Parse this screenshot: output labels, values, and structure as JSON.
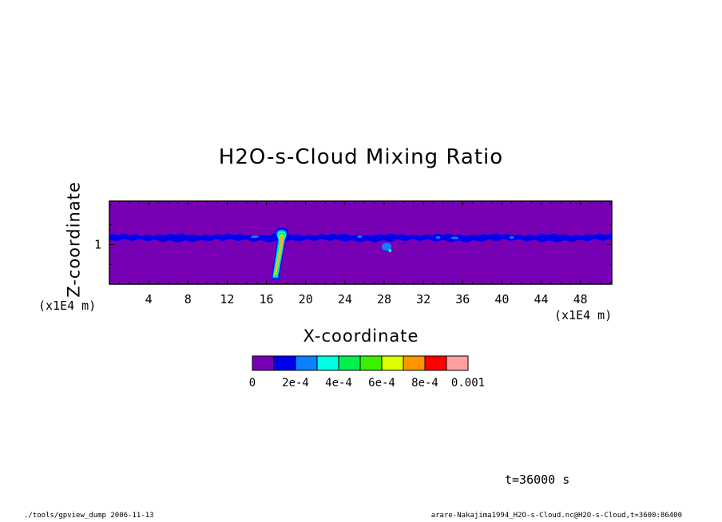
{
  "chart_data": {
    "type": "heatmap",
    "title": "H2O-s-Cloud Mixing Ratio",
    "xlabel": "X-coordinate",
    "ylabel": "Z-coordinate",
    "x_unit": "(x1E4 m)",
    "y_unit": "(x1E4 m)",
    "xlim": [
      0,
      51.2
    ],
    "ylim": [
      0,
      2.1
    ],
    "x_ticks": [
      4,
      8,
      12,
      16,
      20,
      24,
      28,
      32,
      36,
      40,
      44,
      48
    ],
    "x_tick_labels": [
      "4",
      "8",
      "12",
      "16",
      "20",
      "24",
      "28",
      "32",
      "36",
      "40",
      "44",
      "48"
    ],
    "y_ticks": [
      1
    ],
    "y_tick_labels": [
      "1"
    ],
    "colorbar": {
      "levels": [
        0,
        0.0001,
        0.0002,
        0.0003,
        0.0004,
        0.0005,
        0.0006,
        0.0007,
        0.0008,
        0.0009,
        0.001
      ],
      "labels": [
        "0",
        "2e-4",
        "4e-4",
        "6e-4",
        "8e-4",
        "0.001"
      ],
      "colors": [
        "#7800b4",
        "#0000f0",
        "#0a82ff",
        "#00ffe0",
        "#00f050",
        "#3cf000",
        "#dcff00",
        "#ff9600",
        "#ff0000",
        "#ffa0a0"
      ]
    },
    "features": [
      {
        "name": "cloud layer",
        "x_range": [
          0,
          51.2
        ],
        "z_range": [
          1.1,
          1.25
        ],
        "value": 0.00015
      },
      {
        "name": "convective plume",
        "x_range": [
          16.5,
          17.8
        ],
        "z_range": [
          0.2,
          1.4
        ],
        "value_max": 0.0009
      },
      {
        "name": "secondary cell",
        "x_range": [
          27.5,
          29.0
        ],
        "z_range": [
          0.8,
          1.1
        ],
        "value": 0.0003
      }
    ]
  },
  "annotations": {
    "time": "t=36000 s",
    "footer_left": "./tools/gpview_dump   2006-11-13",
    "footer_right": "arare-Nakajima1994_H2O-s-Cloud.nc@H2O-s-Cloud,t=3600:86400"
  }
}
